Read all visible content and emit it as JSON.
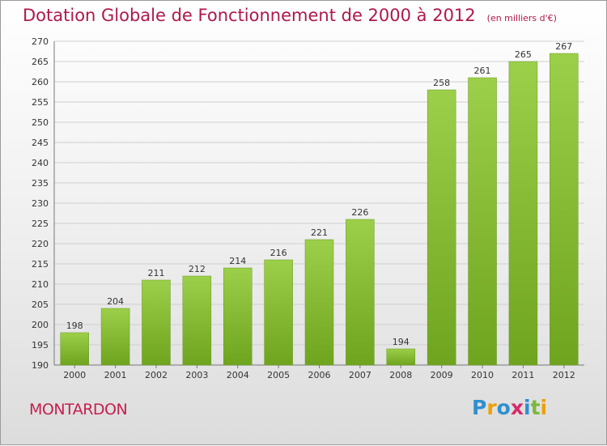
{
  "header": {
    "title": "Dotation Globale de Fonctionnement de 2000 à 2012",
    "unit": "(en milliers d'€)"
  },
  "commune": "MONTARDON",
  "logo": {
    "text": "Proxiti",
    "letters": [
      {
        "char": "P",
        "color": "#2f8fd0"
      },
      {
        "char": "r",
        "color": "#f0a000"
      },
      {
        "char": "o",
        "color": "#2f8fd0"
      },
      {
        "char": "x",
        "color": "#d62a6a"
      },
      {
        "char": "i",
        "color": "#2f8fd0"
      },
      {
        "char": "t",
        "color": "#7ab83a"
      },
      {
        "char": "i",
        "color": "#f0a000"
      }
    ]
  },
  "colors": {
    "title": "#b0184a",
    "bar_light": "#9ccf4a",
    "bar_dark": "#6fa41f"
  },
  "chart_data": {
    "type": "bar",
    "title": "Dotation Globale de Fonctionnement de 2000 à 2012",
    "subtitle": "(en milliers d'€)",
    "categories": [
      "2000",
      "2001",
      "2002",
      "2003",
      "2004",
      "2005",
      "2006",
      "2007",
      "2008",
      "2009",
      "2010",
      "2011",
      "2012"
    ],
    "values": [
      198,
      204,
      211,
      212,
      214,
      216,
      221,
      226,
      194,
      258,
      261,
      265,
      267
    ],
    "ylim": [
      190,
      270
    ],
    "yticks": [
      190,
      195,
      200,
      205,
      210,
      215,
      220,
      225,
      230,
      235,
      240,
      245,
      250,
      255,
      260,
      265,
      270
    ],
    "grid": true,
    "xlabel": "",
    "ylabel": ""
  }
}
